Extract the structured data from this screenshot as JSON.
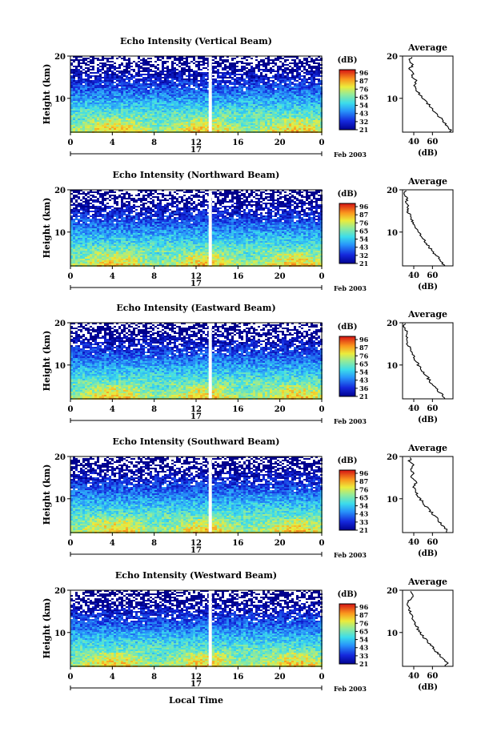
{
  "figure": {
    "ylabel": "Height (km)",
    "xlabel": "Local Time",
    "date_label": "Feb 2003",
    "day_label": "17",
    "colorbar_unit": "(dB)",
    "colorbar_ticks": [
      "96",
      "87",
      "76",
      "65",
      "54",
      "43",
      "32",
      "21"
    ],
    "average_title": "Average",
    "average_xlabel": "(dB)"
  },
  "chart_data": [
    {
      "type": "heatmap",
      "title": "Echo Intensity (Vertical Beam)",
      "xlabel": "",
      "ylabel": "Height (km)",
      "x_ticks": [
        "0",
        "4",
        "8",
        "12",
        "16",
        "20",
        "0"
      ],
      "y_ticks": [
        "10",
        "20"
      ],
      "xlim": [
        0,
        24
      ],
      "ylim": [
        2,
        20
      ],
      "colorbar_ticks": [
        "96",
        "87",
        "76",
        "65",
        "54",
        "43",
        "32",
        "21"
      ],
      "colorbar_range": [
        21,
        96
      ],
      "average_profile": {
        "title": "Average",
        "xlabel": "(dB)",
        "x_ticks": [
          "40",
          "60"
        ],
        "y_ticks": [
          "10",
          "20"
        ],
        "height_km": [
          2,
          3,
          4,
          5,
          6,
          7,
          8,
          9,
          10,
          11,
          12,
          13,
          14,
          15,
          16,
          17,
          18,
          19,
          20
        ],
        "value_db": [
          80,
          78,
          74,
          70,
          66,
          62,
          58,
          54,
          50,
          46,
          42,
          40,
          43,
          38,
          40,
          36,
          39,
          35,
          38
        ]
      }
    },
    {
      "type": "heatmap",
      "title": "Echo Intensity (Northward Beam)",
      "xlabel": "",
      "ylabel": "Height (km)",
      "x_ticks": [
        "0",
        "4",
        "8",
        "12",
        "16",
        "20",
        "0"
      ],
      "y_ticks": [
        "10",
        "20"
      ],
      "xlim": [
        0,
        24
      ],
      "ylim": [
        2,
        20
      ],
      "colorbar_ticks": [
        "96",
        "87",
        "76",
        "65",
        "54",
        "43",
        "32",
        "21"
      ],
      "colorbar_range": [
        21,
        96
      ],
      "average_profile": {
        "title": "Average",
        "xlabel": "(dB)",
        "x_ticks": [
          "40",
          "60"
        ],
        "y_ticks": [
          "10",
          "20"
        ],
        "height_km": [
          2,
          3,
          4,
          5,
          6,
          7,
          8,
          9,
          10,
          11,
          12,
          13,
          14,
          15,
          16,
          17,
          18,
          19,
          20
        ],
        "value_db": [
          72,
          70,
          66,
          62,
          58,
          55,
          51,
          48,
          45,
          42,
          40,
          37,
          36,
          33,
          34,
          31,
          33,
          30,
          32
        ]
      }
    },
    {
      "type": "heatmap",
      "title": "Echo Intensity (Eastward Beam)",
      "xlabel": "",
      "ylabel": "Height (km)",
      "x_ticks": [
        "0",
        "4",
        "8",
        "12",
        "16",
        "20",
        "0"
      ],
      "y_ticks": [
        "10",
        "20"
      ],
      "xlim": [
        0,
        24
      ],
      "ylim": [
        2,
        20
      ],
      "colorbar_ticks": [
        "96",
        "87",
        "76",
        "65",
        "54",
        "43",
        "36",
        "21"
      ],
      "colorbar_range": [
        21,
        96
      ],
      "average_profile": {
        "title": "Average",
        "xlabel": "(dB)",
        "x_ticks": [
          "40",
          "60"
        ],
        "y_ticks": [
          "10",
          "20"
        ],
        "height_km": [
          2,
          3,
          4,
          5,
          6,
          7,
          8,
          9,
          10,
          11,
          12,
          13,
          14,
          15,
          16,
          17,
          18,
          19,
          20
        ],
        "value_db": [
          72,
          70,
          66,
          62,
          58,
          55,
          51,
          48,
          45,
          42,
          40,
          37,
          36,
          33,
          33,
          31,
          32,
          30,
          31
        ]
      }
    },
    {
      "type": "heatmap",
      "title": "Echo Intensity (Southward Beam)",
      "xlabel": "",
      "ylabel": "Height (km)",
      "x_ticks": [
        "0",
        "4",
        "8",
        "12",
        "16",
        "20",
        "0"
      ],
      "y_ticks": [
        "10",
        "20"
      ],
      "xlim": [
        0,
        24
      ],
      "ylim": [
        2,
        20
      ],
      "colorbar_ticks": [
        "96",
        "87",
        "76",
        "65",
        "54",
        "43",
        "33",
        "21"
      ],
      "colorbar_range": [
        21,
        96
      ],
      "average_profile": {
        "title": "Average",
        "xlabel": "(dB)",
        "x_ticks": [
          "40",
          "60"
        ],
        "y_ticks": [
          "10",
          "20"
        ],
        "height_km": [
          2,
          3,
          4,
          5,
          6,
          7,
          8,
          9,
          10,
          11,
          12,
          13,
          14,
          15,
          16,
          17,
          18,
          19,
          20
        ],
        "value_db": [
          76,
          74,
          70,
          66,
          62,
          58,
          54,
          50,
          47,
          44,
          42,
          40,
          43,
          37,
          41,
          36,
          40,
          35,
          38
        ]
      }
    },
    {
      "type": "heatmap",
      "title": "Echo Intensity (Westward Beam)",
      "xlabel": "Local Time",
      "ylabel": "Height (km)",
      "x_ticks": [
        "0",
        "4",
        "8",
        "12",
        "16",
        "20",
        "0"
      ],
      "y_ticks": [
        "10",
        "20"
      ],
      "xlim": [
        0,
        24
      ],
      "ylim": [
        2,
        20
      ],
      "colorbar_ticks": [
        "96",
        "87",
        "76",
        "65",
        "54",
        "43",
        "33",
        "21"
      ],
      "colorbar_range": [
        21,
        96
      ],
      "average_profile": {
        "title": "Average",
        "xlabel": "(dB)",
        "x_ticks": [
          "40",
          "60"
        ],
        "y_ticks": [
          "10",
          "20"
        ],
        "height_km": [
          2,
          3,
          4,
          5,
          6,
          7,
          8,
          9,
          10,
          11,
          12,
          13,
          14,
          15,
          16,
          17,
          18,
          19,
          20
        ],
        "value_db": [
          74,
          76,
          70,
          66,
          62,
          58,
          54,
          50,
          47,
          44,
          42,
          40,
          38,
          36,
          35,
          33,
          36,
          40,
          34
        ]
      }
    }
  ]
}
